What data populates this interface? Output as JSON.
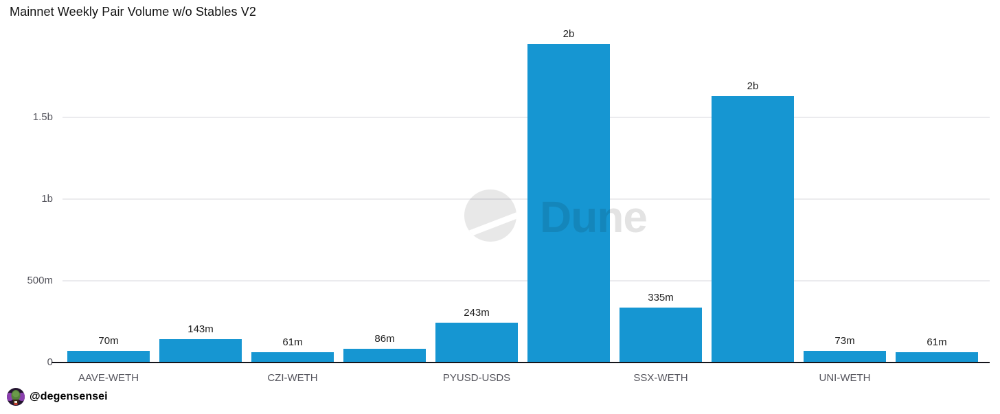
{
  "title": "Mainnet Weekly Pair Volume w/o Stables V2",
  "watermark": {
    "brand": "Dune",
    "logo_icon": "dune-logo-circle-slash"
  },
  "attribution": {
    "handle": "@degensensei",
    "avatar_icon": "degensensei-avatar"
  },
  "colors": {
    "bar": "#1696d2",
    "grid": "#ebebee",
    "axis_line": "#15151a",
    "tick_label": "#54545c",
    "value_label": "#1f1f1f",
    "title": "#111111",
    "watermark_gray": "#e3e3e3",
    "background": "#ffffff"
  },
  "chart_data": {
    "type": "bar",
    "title": "Mainnet Weekly Pair Volume w/o Stables V2",
    "xlabel": "",
    "ylabel": "",
    "legend": "none",
    "grid": "horizontal-only",
    "ylim_millions": [
      0,
      2060
    ],
    "categories": [
      "AAVE-WETH",
      "CZI-WETH",
      "PYUSD-USDS",
      "SSX-WETH",
      "UNI-WETH"
    ],
    "bars": [
      {
        "value_millions": 70,
        "label": "70m"
      },
      {
        "value_millions": 143,
        "label": "143m"
      },
      {
        "value_millions": 61,
        "label": "61m"
      },
      {
        "value_millions": 86,
        "label": "86m"
      },
      {
        "value_millions": 243,
        "label": "243m"
      },
      {
        "value_millions": 1950,
        "label": "2b"
      },
      {
        "value_millions": 335,
        "label": "335m"
      },
      {
        "value_millions": 1630,
        "label": "2b"
      },
      {
        "value_millions": 73,
        "label": "73m"
      },
      {
        "value_millions": 61,
        "label": "61m"
      }
    ],
    "x_ticks": [
      {
        "slot": 0,
        "label": "AAVE-WETH"
      },
      {
        "slot": 2,
        "label": "CZI-WETH"
      },
      {
        "slot": 4,
        "label": "PYUSD-USDS"
      },
      {
        "slot": 6,
        "label": "SSX-WETH"
      },
      {
        "slot": 8,
        "label": "UNI-WETH"
      }
    ],
    "y_ticks": [
      {
        "value_millions": 0,
        "label": "0"
      },
      {
        "value_millions": 500,
        "label": "500m"
      },
      {
        "value_millions": 1000,
        "label": "1b"
      },
      {
        "value_millions": 1500,
        "label": "1.5b"
      }
    ]
  }
}
